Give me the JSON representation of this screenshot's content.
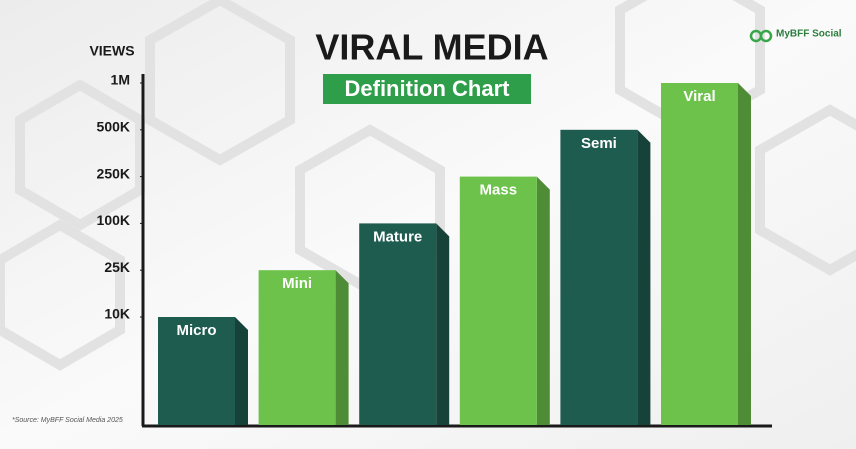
{
  "chart_data": {
    "type": "bar",
    "title": "VIRAL MEDIA",
    "subtitle": "Definition Chart",
    "y_label": "VIEWS",
    "brand": "MyBFF Social",
    "source": "*Source: MyBFF Social Media 2025",
    "categories": [
      "Micro",
      "Mini",
      "Mature",
      "Mass",
      "Semi",
      "Viral"
    ],
    "values": [
      10000,
      25000,
      100000,
      250000,
      500000,
      1000000
    ],
    "colors": [
      "#1f5c50",
      "#6cc24a",
      "#1f5c50",
      "#6cc24a",
      "#1f5c50",
      "#6cc24a"
    ],
    "ylim": [
      0,
      1000000
    ],
    "scale": "piecewise",
    "yticks": [
      {
        "value": 10000,
        "label": "10K"
      },
      {
        "value": 25000,
        "label": "25K"
      },
      {
        "value": 100000,
        "label": "100K"
      },
      {
        "value": 250000,
        "label": "250K"
      },
      {
        "value": 500000,
        "label": "500K"
      },
      {
        "value": 1000000,
        "label": "1M"
      }
    ]
  }
}
